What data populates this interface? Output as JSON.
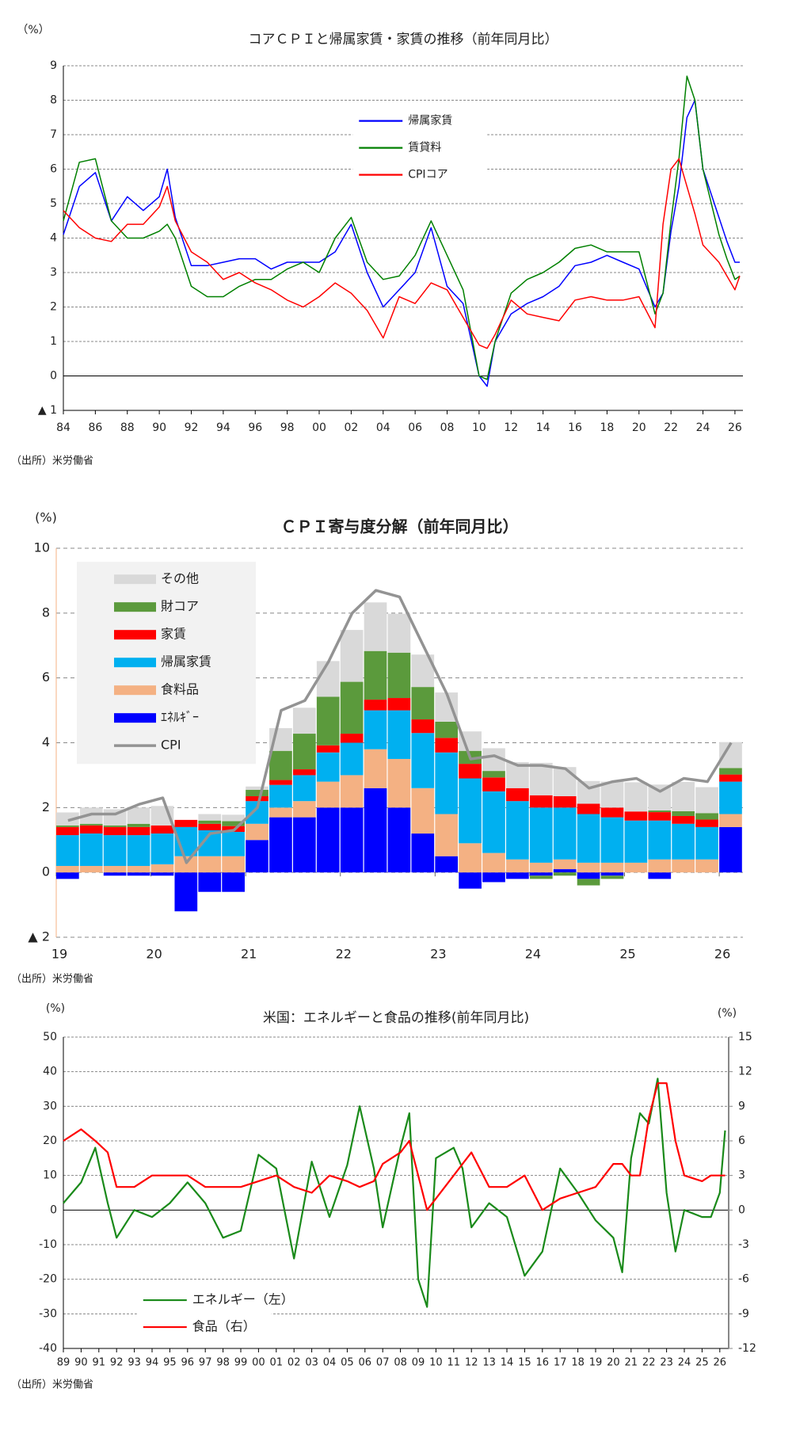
{
  "chart_data": [
    {
      "type": "line",
      "title": "コアＣＰＩと帰属家賃・家賃の推移（前年同月比）",
      "y_unit": "（%）",
      "source": "（出所）米労働省",
      "x": [
        1984,
        1985,
        1986,
        1987,
        1988,
        1989,
        1990,
        1990.5,
        1991,
        1992,
        1993,
        1994,
        1995,
        1996,
        1997,
        1998,
        1999,
        2000,
        2001,
        2002,
        2003,
        2004,
        2005,
        2006,
        2007,
        2008,
        2009,
        2010,
        2010.5,
        2011,
        2012,
        2013,
        2014,
        2015,
        2016,
        2017,
        2018,
        2019,
        2020,
        2021,
        2021.5,
        2022,
        2022.5,
        2023,
        2023.5,
        2024,
        2025,
        2025.5,
        2026,
        2026.3
      ],
      "series": [
        {
          "name": "帰属家賃",
          "color": "#0000ff",
          "values": [
            4.1,
            5.5,
            5.9,
            4.5,
            5.2,
            4.8,
            5.2,
            6.0,
            4.6,
            3.2,
            3.2,
            3.3,
            3.4,
            3.4,
            3.1,
            3.3,
            3.3,
            3.3,
            3.6,
            4.4,
            3.0,
            2.0,
            2.5,
            3.0,
            4.3,
            2.6,
            2.1,
            0.0,
            -0.3,
            1.0,
            1.8,
            2.1,
            2.3,
            2.6,
            3.2,
            3.3,
            3.5,
            3.3,
            3.1,
            2.0,
            2.4,
            4.2,
            5.5,
            7.5,
            8.0,
            6.0,
            4.6,
            3.9,
            3.3,
            3.3
          ]
        },
        {
          "name": "賃貸料",
          "color": "#008000",
          "values": [
            4.5,
            6.2,
            6.3,
            4.5,
            4.0,
            4.0,
            4.2,
            4.4,
            4.0,
            2.6,
            2.3,
            2.3,
            2.6,
            2.8,
            2.8,
            3.1,
            3.3,
            3.0,
            4.0,
            4.6,
            3.3,
            2.8,
            2.9,
            3.5,
            4.5,
            3.5,
            2.5,
            0.0,
            -0.1,
            1.0,
            2.4,
            2.8,
            3.0,
            3.3,
            3.7,
            3.8,
            3.6,
            3.6,
            3.6,
            1.8,
            2.4,
            4.5,
            6.3,
            8.7,
            8.0,
            6.0,
            4.1,
            3.4,
            2.8,
            2.9
          ]
        },
        {
          "name": "CPIコア",
          "color": "#ff0000",
          "values": [
            4.8,
            4.3,
            4.0,
            3.9,
            4.4,
            4.4,
            4.9,
            5.5,
            4.5,
            3.6,
            3.3,
            2.8,
            3.0,
            2.7,
            2.5,
            2.2,
            2.0,
            2.3,
            2.7,
            2.4,
            1.9,
            1.1,
            2.3,
            2.1,
            2.7,
            2.5,
            1.7,
            0.9,
            0.8,
            1.2,
            2.2,
            1.8,
            1.7,
            1.6,
            2.2,
            2.3,
            2.2,
            2.2,
            2.3,
            1.4,
            4.4,
            6.0,
            6.3,
            5.5,
            4.7,
            3.8,
            3.3,
            2.9,
            2.5,
            2.9
          ]
        }
      ],
      "xlim": [
        1984,
        2026.5
      ],
      "xticks": [
        {
          "value": 1984,
          "label": "84"
        },
        {
          "value": 1986,
          "label": "86"
        },
        {
          "value": 1988,
          "label": "88"
        },
        {
          "value": 1990,
          "label": "90"
        },
        {
          "value": 1992,
          "label": "92"
        },
        {
          "value": 1994,
          "label": "94"
        },
        {
          "value": 1996,
          "label": "96"
        },
        {
          "value": 1998,
          "label": "98"
        },
        {
          "value": 2000,
          "label": "00"
        },
        {
          "value": 2002,
          "label": "02"
        },
        {
          "value": 2004,
          "label": "04"
        },
        {
          "value": 2006,
          "label": "06"
        },
        {
          "value": 2008,
          "label": "08"
        },
        {
          "value": 2010,
          "label": "10"
        },
        {
          "value": 2012,
          "label": "12"
        },
        {
          "value": 2014,
          "label": "14"
        },
        {
          "value": 2016,
          "label": "16"
        },
        {
          "value": 2018,
          "label": "18"
        },
        {
          "value": 2020,
          "label": "20"
        },
        {
          "value": 2022,
          "label": "22"
        },
        {
          "value": 2024,
          "label": "24"
        },
        {
          "value": 2026,
          "label": "26"
        }
      ],
      "ylim": [
        -1,
        9
      ],
      "yticks": [
        {
          "value": -1,
          "label": "▲ 1"
        },
        0,
        1,
        2,
        3,
        4,
        5,
        6,
        7,
        8,
        9
      ],
      "grid": true,
      "legend": "upper center"
    },
    {
      "type": "bar",
      "stacked": true,
      "title": "ＣＰＩ寄与度分解（前年同月比）",
      "y_unit": "(%)",
      "source": "（出所）米労働省",
      "categories": [
        "19",
        null,
        null,
        null,
        "20",
        null,
        null,
        null,
        "21",
        null,
        null,
        null,
        "22",
        null,
        null,
        null,
        "23",
        null,
        null,
        null,
        "24",
        null,
        null,
        null,
        "25",
        null,
        null,
        null,
        "26"
      ],
      "series": [
        {
          "name": "ｴﾈﾙｷﾞｰ",
          "color": "#0000ff",
          "values": [
            -0.2,
            0,
            -0.1,
            -0.1,
            -0.1,
            -1.2,
            -0.6,
            -0.6,
            1.0,
            1.7,
            1.7,
            2.0,
            2.0,
            2.6,
            2.0,
            1.2,
            0.5,
            -0.5,
            -0.3,
            -0.2,
            -0.1,
            0.1,
            -0.2,
            -0.1,
            0,
            -0.2,
            0,
            0,
            1.4
          ]
        },
        {
          "name": "食料品",
          "color": "#f4b183",
          "values": [
            0.2,
            0.2,
            0.2,
            0.2,
            0.25,
            0.5,
            0.5,
            0.5,
            0.5,
            0.3,
            0.5,
            0.8,
            1.0,
            1.2,
            1.5,
            1.4,
            1.3,
            0.9,
            0.6,
            0.4,
            0.3,
            0.3,
            0.3,
            0.3,
            0.3,
            0.4,
            0.4,
            0.4,
            0.4
          ]
        },
        {
          "name": "帰属家賃",
          "color": "#00b0f0",
          "values": [
            0.95,
            1.0,
            0.95,
            0.95,
            0.95,
            0.9,
            0.8,
            0.75,
            0.7,
            0.7,
            0.8,
            0.9,
            1.0,
            1.2,
            1.5,
            1.7,
            1.9,
            2.0,
            1.9,
            1.8,
            1.7,
            1.6,
            1.5,
            1.4,
            1.3,
            1.2,
            1.1,
            1.0,
            1.0
          ]
        },
        {
          "name": "家賃",
          "color": "#ff0000",
          "values": [
            0.25,
            0.25,
            0.25,
            0.25,
            0.25,
            0.22,
            0.2,
            0.18,
            0.15,
            0.15,
            0.18,
            0.22,
            0.28,
            0.33,
            0.38,
            0.42,
            0.45,
            0.45,
            0.43,
            0.4,
            0.38,
            0.35,
            0.32,
            0.3,
            0.28,
            0.26,
            0.24,
            0.23,
            0.22
          ]
        },
        {
          "name": "財コア",
          "color": "#5b9a3c",
          "values": [
            0.05,
            0.05,
            0.05,
            0.1,
            0,
            0,
            0.1,
            0.15,
            0.2,
            0.9,
            1.1,
            1.5,
            1.6,
            1.5,
            1.4,
            1.0,
            0.5,
            0.4,
            0.2,
            0,
            -0.1,
            -0.1,
            -0.2,
            -0.1,
            0,
            0.05,
            0.15,
            0.2,
            0.2
          ]
        },
        {
          "name": "その他",
          "color": "#d9d9d9",
          "values": [
            0.4,
            0.5,
            0.5,
            0.5,
            0.6,
            0,
            0.2,
            0.2,
            0.1,
            0.7,
            0.8,
            1.1,
            1.6,
            1.5,
            1.2,
            1.0,
            0.9,
            0.6,
            0.7,
            0.8,
            1.0,
            0.9,
            0.7,
            0.8,
            0.9,
            0.8,
            0.9,
            0.8,
            0.8
          ]
        }
      ],
      "line": {
        "name": "CPI",
        "color": "#939393",
        "values": [
          1.6,
          1.8,
          1.8,
          2.1,
          2.3,
          0.3,
          1.2,
          1.3,
          2.0,
          5.0,
          5.3,
          6.5,
          8.0,
          8.7,
          8.5,
          7.0,
          5.5,
          3.5,
          3.6,
          3.3,
          3.3,
          3.2,
          2.6,
          2.8,
          2.9,
          2.5,
          2.9,
          2.8,
          4.0
        ]
      },
      "ylim": [
        -2,
        10
      ],
      "yticks": [
        {
          "value": -2,
          "label": "▲ 2"
        },
        0,
        2,
        4,
        6,
        8,
        10
      ],
      "grid": true,
      "legend": "upper left"
    },
    {
      "type": "line",
      "title": "米国：エネルギーと食品の推移(前年同月比)",
      "y_unit": "(%)",
      "y2_unit": "(%)",
      "source": "（出所）米労働省",
      "x": [
        1989,
        1990,
        1990.8,
        1991.5,
        1992,
        1993,
        1994,
        1995,
        1996,
        1997,
        1998,
        1999,
        2000,
        2001,
        2002,
        2003,
        2004,
        2005,
        2005.7,
        2006.5,
        2007,
        2008,
        2008.5,
        2009,
        2009.5,
        2010,
        2011,
        2011.5,
        2012,
        2013,
        2014,
        2015,
        2016,
        2017,
        2018,
        2019,
        2020,
        2020.5,
        2021,
        2021.5,
        2022,
        2022.5,
        2023,
        2023.5,
        2024,
        2025,
        2025.5,
        2026,
        2026.3
      ],
      "series": [
        {
          "name": "エネルギー（左）",
          "color": "#1a8a1a",
          "values": [
            2,
            8,
            18,
            2,
            -8,
            0,
            -2,
            2,
            8,
            2,
            -8,
            -6,
            16,
            12,
            -14,
            14,
            -2,
            13,
            30,
            12,
            -5,
            18,
            28,
            -20,
            -28,
            15,
            18,
            12,
            -5,
            2,
            -2,
            -19,
            -12,
            12,
            5,
            -3,
            -8,
            -18,
            15,
            28,
            25,
            38,
            5,
            -12,
            0,
            -2,
            -2,
            5,
            23
          ]
        },
        {
          "name": "食品（右）",
          "color": "#ff0000",
          "axis": "y2",
          "values": [
            6,
            7,
            6,
            5,
            2,
            2,
            3,
            3,
            3,
            2,
            2,
            2,
            2.5,
            3,
            2,
            1.5,
            3,
            2.5,
            2,
            2.5,
            4,
            5,
            6,
            3,
            0,
            1,
            3,
            4,
            5,
            2,
            2,
            3,
            0,
            1,
            1.5,
            2,
            4,
            4,
            3,
            3,
            8,
            11,
            11,
            6,
            3,
            2.5,
            3,
            3,
            3
          ]
        }
      ],
      "xlim": [
        1989,
        2026.5
      ],
      "xticks": [
        {
          "value": 1989,
          "label": "89"
        },
        {
          "value": 1990,
          "label": "90"
        },
        {
          "value": 1991,
          "label": "91"
        },
        {
          "value": 1992,
          "label": "92"
        },
        {
          "value": 1993,
          "label": "93"
        },
        {
          "value": 1994,
          "label": "94"
        },
        {
          "value": 1995,
          "label": "95"
        },
        {
          "value": 1996,
          "label": "96"
        },
        {
          "value": 1997,
          "label": "97"
        },
        {
          "value": 1998,
          "label": "98"
        },
        {
          "value": 1999,
          "label": "99"
        },
        {
          "value": 2000,
          "label": "00"
        },
        {
          "value": 2001,
          "label": "01"
        },
        {
          "value": 2002,
          "label": "02"
        },
        {
          "value": 2003,
          "label": "03"
        },
        {
          "value": 2004,
          "label": "04"
        },
        {
          "value": 2005,
          "label": "05"
        },
        {
          "value": 2006,
          "label": "06"
        },
        {
          "value": 2007,
          "label": "07"
        },
        {
          "value": 2008,
          "label": "08"
        },
        {
          "value": 2009,
          "label": "09"
        },
        {
          "value": 2010,
          "label": "10"
        },
        {
          "value": 2011,
          "label": "11"
        },
        {
          "value": 2012,
          "label": "12"
        },
        {
          "value": 2013,
          "label": "13"
        },
        {
          "value": 2014,
          "label": "14"
        },
        {
          "value": 2015,
          "label": "15"
        },
        {
          "value": 2016,
          "label": "16"
        },
        {
          "value": 2017,
          "label": "17"
        },
        {
          "value": 2018,
          "label": "18"
        },
        {
          "value": 2019,
          "label": "19"
        },
        {
          "value": 2020,
          "label": "20"
        },
        {
          "value": 2021,
          "label": "21"
        },
        {
          "value": 2022,
          "label": "22"
        },
        {
          "value": 2023,
          "label": "23"
        },
        {
          "value": 2024,
          "label": "24"
        },
        {
          "value": 2025,
          "label": "25"
        },
        {
          "value": 2026,
          "label": "26"
        }
      ],
      "ylim": [
        -40,
        50
      ],
      "yticks": [
        -40,
        -30,
        -20,
        -10,
        0,
        10,
        20,
        30,
        40,
        50
      ],
      "y2lim": [
        -12,
        15
      ],
      "y2ticks": [
        -12,
        -9,
        -6,
        -3,
        0,
        3,
        6,
        9,
        12,
        15
      ],
      "grid": true,
      "legend": "lower left"
    }
  ]
}
